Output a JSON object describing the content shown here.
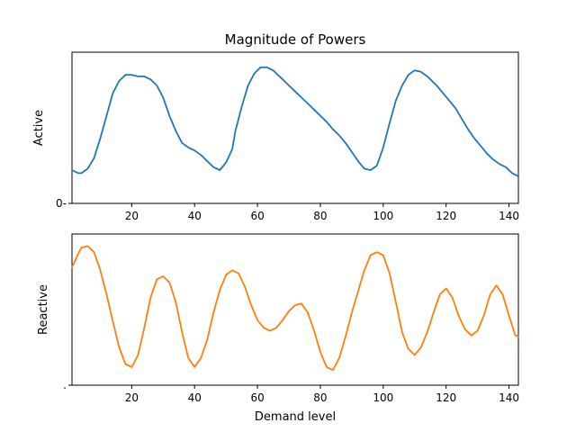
{
  "title": "Magnitude of Powers",
  "colors": {
    "active": "#1f77b4",
    "reactive": "#ff7f0e",
    "axis": "#000000",
    "background": "#ffffff"
  },
  "chart_data": [
    {
      "type": "line",
      "panel": "top",
      "title": "Magnitude of Powers",
      "xlabel": "",
      "ylabel": "Active",
      "xlim": [
        1,
        143
      ],
      "ylim": [
        0,
        1
      ],
      "xticks": [
        20,
        40,
        60,
        80,
        100,
        120,
        140
      ],
      "xtick_labels": [
        "20",
        "40",
        "60",
        "80",
        "100",
        "120",
        "140"
      ],
      "yticks": [
        0
      ],
      "ytick_labels": [
        "0-"
      ],
      "grid": false,
      "series": [
        {
          "color": "#1f77b4",
          "x": [
            1,
            3,
            4,
            6,
            8,
            10,
            12,
            14,
            16,
            18,
            19,
            20,
            22,
            24,
            26,
            28,
            30,
            32,
            34,
            36,
            38,
            40,
            42,
            44,
            46,
            48,
            50,
            52,
            53,
            55,
            57,
            59,
            61,
            63,
            65,
            66,
            68,
            70,
            72,
            74,
            76,
            78,
            80,
            82,
            84,
            86,
            88,
            90,
            92,
            94,
            96,
            98,
            100,
            102,
            104,
            106,
            108,
            110,
            112,
            114,
            115,
            117,
            119,
            121,
            123,
            125,
            127,
            129,
            131,
            133,
            135,
            137,
            139,
            141,
            143
          ],
          "y": [
            0.22,
            0.2,
            0.2,
            0.23,
            0.3,
            0.43,
            0.58,
            0.73,
            0.81,
            0.85,
            0.85,
            0.85,
            0.84,
            0.84,
            0.82,
            0.78,
            0.7,
            0.58,
            0.48,
            0.4,
            0.37,
            0.35,
            0.32,
            0.28,
            0.24,
            0.22,
            0.27,
            0.36,
            0.48,
            0.64,
            0.78,
            0.86,
            0.9,
            0.9,
            0.88,
            0.86,
            0.82,
            0.78,
            0.74,
            0.7,
            0.66,
            0.62,
            0.58,
            0.54,
            0.49,
            0.45,
            0.4,
            0.34,
            0.28,
            0.23,
            0.22,
            0.25,
            0.37,
            0.53,
            0.68,
            0.78,
            0.85,
            0.88,
            0.87,
            0.84,
            0.82,
            0.78,
            0.73,
            0.68,
            0.63,
            0.56,
            0.49,
            0.43,
            0.38,
            0.33,
            0.29,
            0.26,
            0.24,
            0.2,
            0.18
          ]
        }
      ]
    },
    {
      "type": "line",
      "panel": "bottom",
      "title": "",
      "xlabel": "Demand level",
      "ylabel": "Reactive",
      "xlim": [
        1,
        143
      ],
      "ylim": [
        0,
        1
      ],
      "xticks": [
        20,
        40,
        60,
        80,
        100,
        120,
        140
      ],
      "xtick_labels": [
        "20",
        "40",
        "60",
        "80",
        "100",
        "120",
        "140"
      ],
      "yticks": [
        0
      ],
      "ytick_labels": [
        "."
      ],
      "grid": false,
      "series": [
        {
          "color": "#ff7f0e",
          "x": [
            1,
            3,
            4,
            6,
            8,
            10,
            12,
            14,
            16,
            18,
            20,
            22,
            24,
            26,
            28,
            30,
            31,
            32,
            34,
            36,
            38,
            40,
            42,
            44,
            46,
            48,
            50,
            52,
            54,
            56,
            58,
            60,
            62,
            64,
            66,
            68,
            70,
            72,
            74,
            76,
            78,
            80,
            82,
            84,
            86,
            88,
            90,
            92,
            94,
            96,
            98,
            100,
            102,
            104,
            106,
            108,
            110,
            112,
            114,
            116,
            118,
            120,
            122,
            124,
            126,
            128,
            130,
            132,
            134,
            136,
            138,
            140,
            142,
            143
          ],
          "y": [
            0.78,
            0.87,
            0.91,
            0.92,
            0.88,
            0.76,
            0.6,
            0.42,
            0.25,
            0.14,
            0.12,
            0.2,
            0.38,
            0.58,
            0.7,
            0.72,
            0.7,
            0.68,
            0.55,
            0.35,
            0.18,
            0.12,
            0.18,
            0.3,
            0.48,
            0.63,
            0.73,
            0.76,
            0.74,
            0.65,
            0.53,
            0.43,
            0.38,
            0.36,
            0.38,
            0.43,
            0.49,
            0.53,
            0.54,
            0.48,
            0.36,
            0.22,
            0.12,
            0.1,
            0.18,
            0.32,
            0.48,
            0.62,
            0.76,
            0.86,
            0.88,
            0.86,
            0.74,
            0.55,
            0.35,
            0.24,
            0.2,
            0.25,
            0.35,
            0.48,
            0.6,
            0.64,
            0.58,
            0.46,
            0.37,
            0.33,
            0.36,
            0.46,
            0.6,
            0.66,
            0.6,
            0.46,
            0.33,
            0.32
          ]
        }
      ]
    }
  ]
}
